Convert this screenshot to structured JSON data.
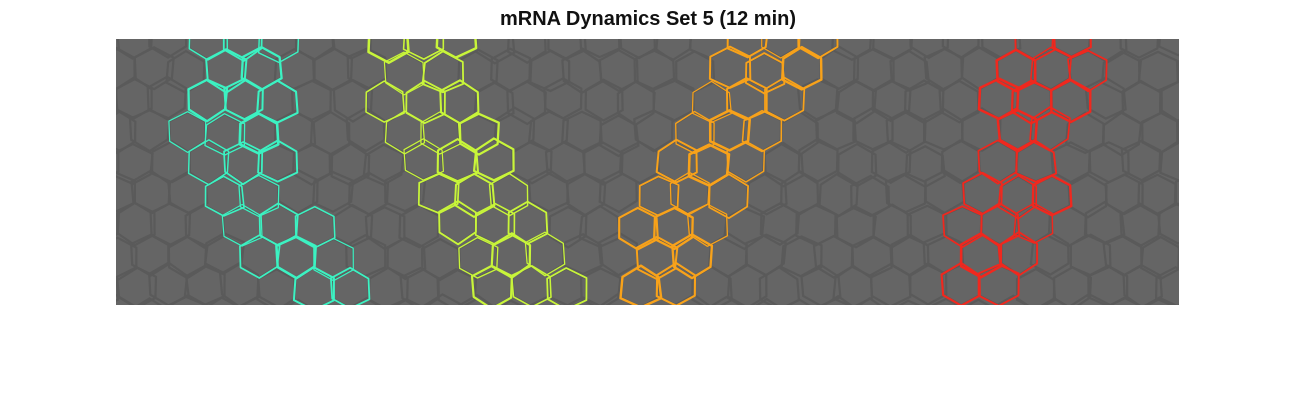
{
  "figure": {
    "title": "mRNA Dynamics Set 5 (12 min)"
  },
  "image": {
    "background_color": "#656565",
    "membrane_color": "#5a5a5a",
    "stripes": [
      {
        "name": "stripe-cyan",
        "color": "#3cf2c2"
      },
      {
        "name": "stripe-yellow-green",
        "color": "#c8f53a"
      },
      {
        "name": "stripe-orange",
        "color": "#f8a21a"
      },
      {
        "name": "stripe-red",
        "color": "#f0281e"
      }
    ]
  }
}
